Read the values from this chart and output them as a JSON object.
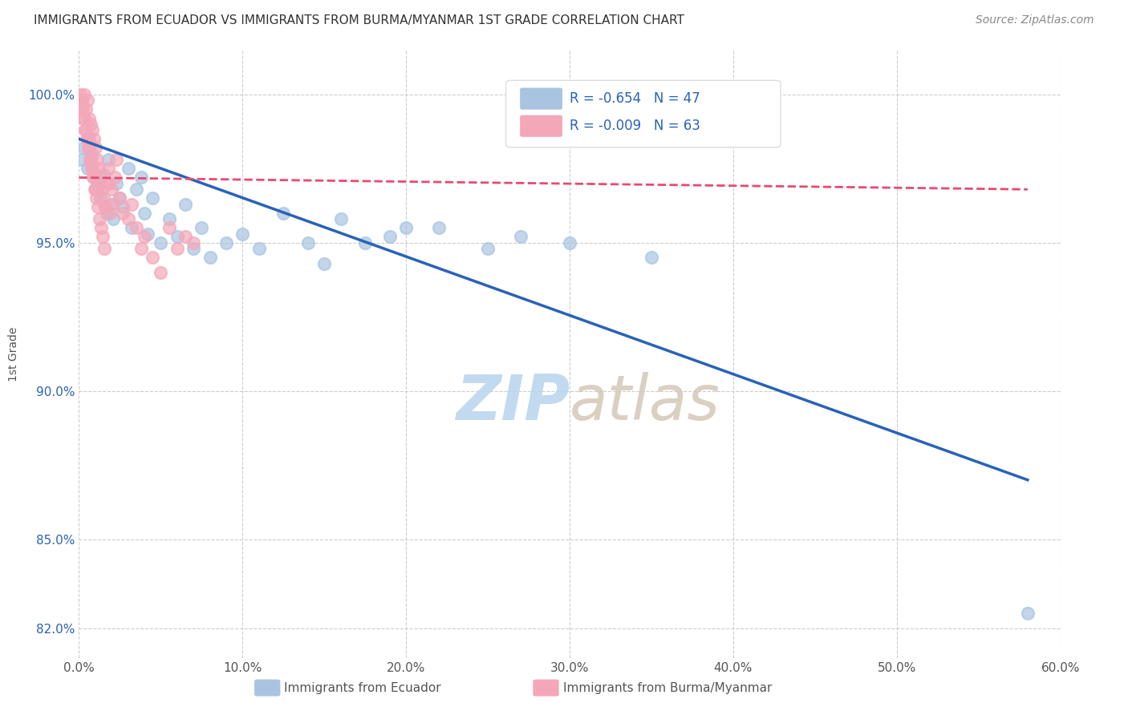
{
  "title": "IMMIGRANTS FROM ECUADOR VS IMMIGRANTS FROM BURMA/MYANMAR 1ST GRADE CORRELATION CHART",
  "source": "Source: ZipAtlas.com",
  "ylabel": "1st Grade",
  "yticks": [
    82.0,
    85.0,
    90.0,
    95.0,
    100.0
  ],
  "xtick_vals": [
    0,
    10,
    20,
    30,
    40,
    50,
    60
  ],
  "xtick_labels": [
    "0.0%",
    "10.0%",
    "20.0%",
    "30.0%",
    "40.0%",
    "50.0%",
    "60.0%"
  ],
  "xlim": [
    0.0,
    60.0
  ],
  "ylim": [
    81.0,
    101.5
  ],
  "legend_R_ecuador": "R = -0.654",
  "legend_N_ecuador": "N = 47",
  "legend_R_burma": "R = -0.009",
  "legend_N_burma": "N = 63",
  "ecuador_color": "#a8c4e0",
  "burma_color": "#f4a7b9",
  "ecuador_line_color": "#2962b8",
  "burma_line_color": "#e84a6f",
  "watermark_zip": "ZIP",
  "watermark_atlas": "atlas",
  "background_color": "#ffffff",
  "grid_color": "#cccccc",
  "ecuador_scatter_x": [
    0.2,
    0.3,
    0.5,
    0.6,
    0.8,
    1.0,
    1.1,
    1.2,
    1.3,
    1.5,
    1.7,
    1.8,
    2.0,
    2.1,
    2.3,
    2.5,
    2.7,
    3.0,
    3.2,
    3.5,
    3.8,
    4.0,
    4.2,
    4.5,
    5.0,
    5.5,
    6.0,
    6.5,
    7.0,
    7.5,
    8.0,
    9.0,
    10.0,
    11.0,
    12.5,
    14.0,
    15.0,
    16.0,
    17.5,
    19.0,
    20.0,
    22.0,
    25.0,
    27.0,
    30.0,
    35.0,
    58.0
  ],
  "ecuador_scatter_y": [
    97.8,
    98.2,
    97.5,
    98.5,
    98.0,
    97.2,
    96.8,
    97.0,
    96.5,
    97.3,
    96.0,
    97.8,
    96.3,
    95.8,
    97.0,
    96.5,
    96.2,
    97.5,
    95.5,
    96.8,
    97.2,
    96.0,
    95.3,
    96.5,
    95.0,
    95.8,
    95.2,
    96.3,
    94.8,
    95.5,
    94.5,
    95.0,
    95.3,
    94.8,
    96.0,
    95.0,
    94.3,
    95.8,
    95.0,
    95.2,
    95.5,
    95.5,
    94.8,
    95.2,
    95.0,
    94.5,
    82.5
  ],
  "burma_scatter_x": [
    0.1,
    0.2,
    0.3,
    0.4,
    0.5,
    0.6,
    0.7,
    0.8,
    0.9,
    1.0,
    1.1,
    1.2,
    1.3,
    1.4,
    1.5,
    1.6,
    1.7,
    1.8,
    1.9,
    2.0,
    2.1,
    2.2,
    2.3,
    2.5,
    2.7,
    3.0,
    3.2,
    3.5,
    3.8,
    4.0,
    4.5,
    5.0,
    5.5,
    6.0,
    6.5,
    7.0,
    0.15,
    0.25,
    0.35,
    0.45,
    0.55,
    0.65,
    0.75,
    0.85,
    0.95,
    1.05,
    1.15,
    1.25,
    1.35,
    1.45,
    1.55,
    0.12,
    0.22,
    0.32,
    0.42,
    0.52,
    0.62,
    0.72,
    0.82,
    0.92,
    1.02,
    1.6,
    1.8
  ],
  "burma_scatter_y": [
    100.0,
    99.8,
    100.0,
    99.5,
    99.8,
    99.2,
    99.0,
    98.8,
    98.5,
    98.2,
    97.8,
    97.5,
    97.2,
    96.8,
    96.5,
    96.2,
    97.0,
    97.5,
    96.0,
    96.8,
    96.3,
    97.2,
    97.8,
    96.5,
    96.0,
    95.8,
    96.3,
    95.5,
    94.8,
    95.2,
    94.5,
    94.0,
    95.5,
    94.8,
    95.2,
    95.0,
    99.5,
    99.2,
    98.8,
    98.5,
    98.2,
    97.8,
    97.5,
    97.2,
    96.8,
    96.5,
    96.2,
    95.8,
    95.5,
    95.2,
    94.8,
    99.8,
    99.5,
    99.2,
    98.8,
    98.5,
    98.2,
    97.8,
    97.5,
    97.2,
    96.8,
    96.2,
    97.0
  ],
  "ecuador_trendline_x": [
    0.0,
    58.0
  ],
  "ecuador_trendline_y": [
    98.5,
    87.0
  ],
  "burma_trendline_x": [
    0.0,
    58.0
  ],
  "burma_trendline_y": [
    97.2,
    96.8
  ]
}
